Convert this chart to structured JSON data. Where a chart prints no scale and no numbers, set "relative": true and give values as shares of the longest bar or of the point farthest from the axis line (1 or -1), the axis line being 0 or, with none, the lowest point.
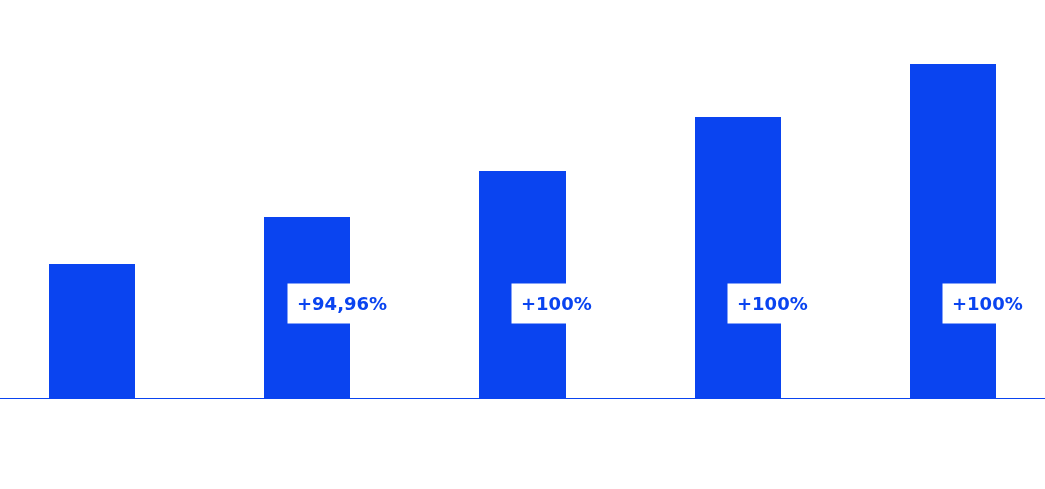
{
  "chart_data": {
    "type": "bar",
    "relative": true,
    "categories": [
      null,
      null,
      null,
      null,
      null
    ],
    "values": [
      0.4,
      0.54,
      0.68,
      0.84,
      1
    ],
    "color": "#0a44f0",
    "annotations": [
      "+94,96%",
      "+100%",
      "+100%",
      "+100%"
    ]
  }
}
